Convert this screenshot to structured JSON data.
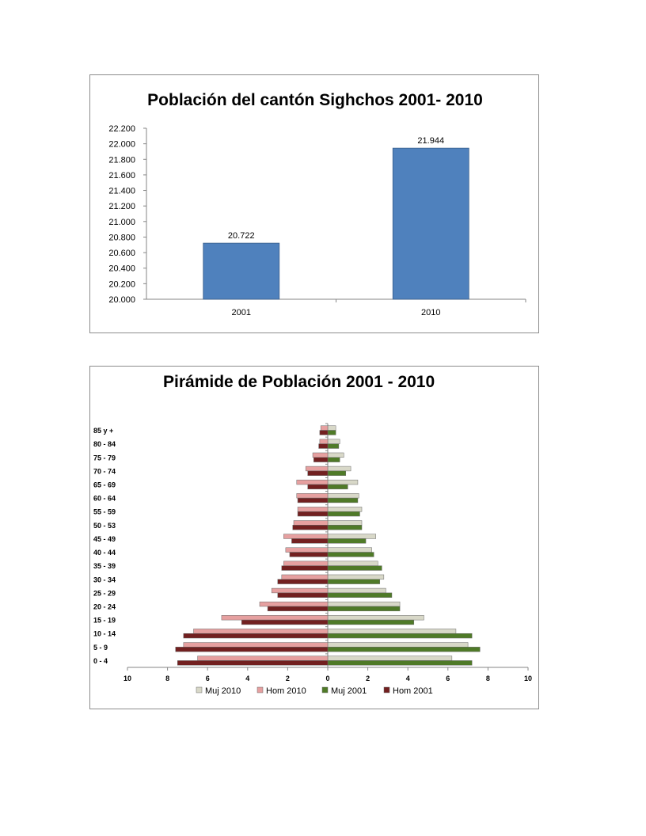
{
  "charts": [
    {
      "chart_data": {
        "type": "bar",
        "title": "Población del cantón Sighchos 2001- 2010",
        "categories": [
          "2001",
          "2010"
        ],
        "values": [
          20722,
          21944
        ],
        "value_labels": [
          "20.722",
          "21.944"
        ],
        "ylim": [
          20000,
          22200
        ],
        "yticks": [
          20000,
          20200,
          20400,
          20600,
          20800,
          21000,
          21200,
          21400,
          21600,
          21800,
          22000,
          22200
        ],
        "ytick_labels": [
          "20.000",
          "20.200",
          "20.400",
          "20.600",
          "20.800",
          "21.000",
          "21.200",
          "21.400",
          "21.600",
          "21.800",
          "22.000",
          "22.200"
        ],
        "xlabel": "",
        "ylabel": "",
        "grid": false,
        "bar_color": "#4f81bd"
      }
    },
    {
      "chart_data": {
        "type": "bar",
        "orientation": "horizontal",
        "title": "Pirámide de Población 2001 - 2010",
        "categories": [
          "0 - 4",
          "5 - 9",
          "10 - 14",
          "15 - 19",
          "20 - 24",
          "25 - 29",
          "30 - 34",
          "35 - 39",
          "40 - 44",
          "45 - 49",
          "50 - 53",
          "55 - 59",
          "60 - 64",
          "65 - 69",
          "70 - 74",
          "75 - 79",
          "80 - 84",
          "85 y  +"
        ],
        "series": [
          {
            "name": "Muj 2010",
            "side": "right",
            "color": "#d8d8c8",
            "values": [
              6.2,
              7.0,
              6.4,
              4.8,
              3.6,
              2.9,
              2.8,
              2.5,
              2.2,
              2.4,
              1.7,
              1.7,
              1.55,
              1.5,
              1.15,
              0.8,
              0.6,
              0.4
            ]
          },
          {
            "name": "Hom 2010",
            "side": "left",
            "color": "#e6a0a0",
            "values": [
              6.5,
              7.2,
              6.7,
              5.3,
              3.4,
              2.8,
              2.3,
              2.2,
              2.1,
              2.2,
              1.7,
              1.5,
              1.55,
              1.55,
              1.1,
              0.75,
              0.4,
              0.35
            ]
          },
          {
            "name": "Muj 2001",
            "side": "right",
            "color": "#4f7a28",
            "values": [
              7.2,
              7.6,
              7.2,
              4.3,
              3.6,
              3.2,
              2.6,
              2.7,
              2.3,
              1.9,
              1.7,
              1.6,
              1.5,
              1.0,
              0.9,
              0.6,
              0.55,
              0.4
            ]
          },
          {
            "name": "Hom 2001",
            "side": "left",
            "color": "#722020",
            "values": [
              7.5,
              7.6,
              7.2,
              4.3,
              3.0,
              2.5,
              2.5,
              2.3,
              1.9,
              1.8,
              1.75,
              1.5,
              1.5,
              1.0,
              1.0,
              0.7,
              0.45,
              0.4
            ]
          }
        ],
        "xlim": [
          -10,
          10
        ],
        "xticks": [
          -10,
          -8,
          -6,
          -4,
          -2,
          0,
          2,
          4,
          6,
          8,
          10
        ],
        "xtick_labels": [
          "10",
          "8",
          "6",
          "4",
          "2",
          "0",
          "2",
          "4",
          "6",
          "8",
          "10"
        ],
        "legend_position": "bottom",
        "grid": false
      }
    }
  ]
}
